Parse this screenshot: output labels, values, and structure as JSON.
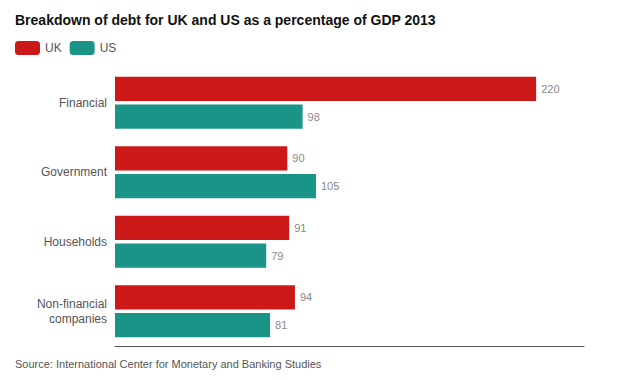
{
  "chart_data": {
    "type": "bar",
    "orientation": "horizontal",
    "title": "Breakdown of debt for UK and US as a percentage of GDP 2013",
    "source": "Source: International Center for Monetary and Banking Studies",
    "categories": [
      "Financial",
      "Government",
      "Households",
      "Non-financial\ncompanies"
    ],
    "series": [
      {
        "name": "UK",
        "color": "#cc1818",
        "values": [
          220,
          90,
          91,
          94
        ]
      },
      {
        "name": "US",
        "color": "#1a9486",
        "values": [
          98,
          105,
          79,
          81
        ]
      }
    ],
    "xlim": [
      0,
      245
    ],
    "tick_labels": "y",
    "data_labels": true,
    "grid": false,
    "legend": "upper left"
  }
}
